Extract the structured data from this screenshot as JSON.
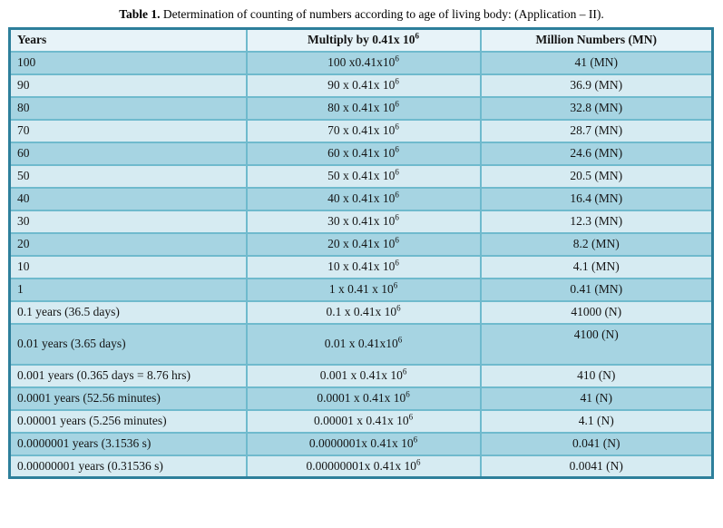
{
  "caption": {
    "label": "Table 1.",
    "text": "Determination of counting of numbers according to age of living body: (Application – II)."
  },
  "table": {
    "headers": [
      "Years",
      "Multiply by 0.41x 10^6",
      "Million Numbers (MN)"
    ],
    "rows": [
      {
        "years": "100",
        "multiply": "100 x0.41x10^6",
        "result": "41 (MN)"
      },
      {
        "years": "90",
        "multiply": "90 x 0.41x 10^6",
        "result": "36.9 (MN)"
      },
      {
        "years": "80",
        "multiply": "80 x 0.41x 10^6",
        "result": "32.8 (MN)"
      },
      {
        "years": "70",
        "multiply": "70 x 0.41x 10^6",
        "result": "28.7 (MN)"
      },
      {
        "years": "60",
        "multiply": "60 x 0.41x 10^6",
        "result": "24.6 (MN)"
      },
      {
        "years": "50",
        "multiply": "50 x 0.41x 10^6",
        "result": "20.5 (MN)"
      },
      {
        "years": "40",
        "multiply": "40 x 0.41x 10^6",
        "result": "16.4 (MN)"
      },
      {
        "years": "30",
        "multiply": "30 x 0.41x 10^6",
        "result": "12.3 (MN)"
      },
      {
        "years": "20",
        "multiply": "20 x 0.41x 10^6",
        "result": "8.2 (MN)"
      },
      {
        "years": "10",
        "multiply": "10 x 0.41x 10^6",
        "result": "4.1 (MN)"
      },
      {
        "years": "1",
        "multiply": "1 x 0.41 x 10^6",
        "result": "0.41 (MN)"
      },
      {
        "years": "0.1 years (36.5 days)",
        "multiply": "0.1 x 0.41x 10^6",
        "result": "41000 (N)"
      },
      {
        "years": "0.01 years (3.65 days)",
        "multiply": "0.01 x 0.41x10^6",
        "result": "4100 (N)",
        "tall": true
      },
      {
        "years": "0.001 years (0.365 days = 8.76 hrs)",
        "multiply": "0.001 x 0.41x 10^6",
        "result": "410 (N)"
      },
      {
        "years": "0.0001 years (52.56 minutes)",
        "multiply": "0.0001 x 0.41x 10^6",
        "result": "41 (N)"
      },
      {
        "years": "0.00001 years (5.256 minutes)",
        "multiply": "0.00001 x 0.41x 10^6",
        "result": "4.1 (N)"
      },
      {
        "years": "0.0000001 years (3.1536 s)",
        "multiply": "0.0000001x 0.41x 10^6",
        "result": "0.041 (N)"
      },
      {
        "years": "0.00000001 years (0.31536 s)",
        "multiply": "0.00000001x 0.41x 10^6",
        "result": "0.0041 (N)"
      }
    ]
  },
  "colors": {
    "outer_border": "#2d7f9b",
    "grid_line": "#6fbacd",
    "band_dark": "#a6d4e2",
    "band_light": "#d6ebf2",
    "header_bg": "#e7f3f8"
  }
}
